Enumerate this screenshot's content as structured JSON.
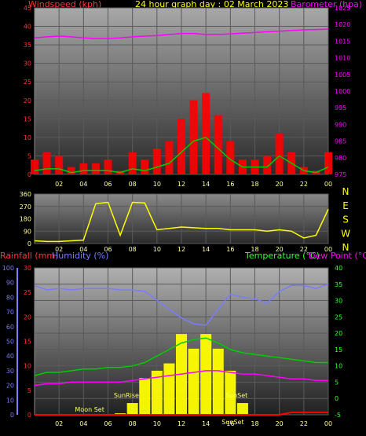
{
  "header": {
    "title": "24 hour graph day : 02 March 2023",
    "left_label": "Windspeed (kph)",
    "right_label": "Barometer (hpa)"
  },
  "colors": {
    "wind": "#ff0000",
    "gust": "#ff0000",
    "wind_avg": "#00cc00",
    "barometer": "#ff00ff",
    "direction": "#ffff00",
    "temperature": "#00cc00",
    "dew_point": "#ff00ff",
    "humidity": "#7b7bff",
    "solar": "#ffff00",
    "rain": "#ff0000",
    "title": "#ffff00",
    "axis_left": "#ff3333",
    "axis_right": "#ff00ff",
    "grid_line": "#666666"
  },
  "x_ticks": [
    "02",
    "04",
    "06",
    "08",
    "10",
    "12",
    "14",
    "16",
    "18",
    "20",
    "22",
    "00"
  ],
  "chart_data": [
    {
      "type": "line",
      "title": "24 hour graph day : 02 March 2023",
      "y_left_label": "Windspeed (kph)",
      "y_right_label": "Barometer (hpa)",
      "y_left_ticks": [
        0,
        5,
        10,
        15,
        20,
        25,
        30,
        35,
        40,
        45
      ],
      "y_right_ticks": [
        975,
        980,
        985,
        990,
        995,
        1000,
        1005,
        1010,
        1015,
        1020,
        1025
      ],
      "ylim_left": [
        0,
        45
      ],
      "ylim_right": [
        975,
        1025
      ],
      "x": [
        0,
        1,
        2,
        3,
        4,
        5,
        6,
        7,
        8,
        9,
        10,
        11,
        12,
        13,
        14,
        15,
        16,
        17,
        18,
        19,
        20,
        21,
        22,
        23,
        24
      ],
      "series": [
        {
          "name": "Barometer (hpa)",
          "axis": "right",
          "values": [
            1016,
            1016.3,
            1016.5,
            1016.3,
            1016,
            1015.8,
            1015.8,
            1016,
            1016.3,
            1016.5,
            1016.7,
            1017,
            1017.3,
            1017.3,
            1017,
            1017,
            1017.2,
            1017.4,
            1017.6,
            1017.8,
            1018,
            1018.2,
            1018.4,
            1018.5,
            1018.6
          ]
        },
        {
          "name": "Gust",
          "axis": "left",
          "values": [
            4,
            6,
            5,
            2,
            3,
            3,
            4,
            1,
            6,
            4,
            7,
            9,
            15,
            20,
            22,
            16,
            9,
            4,
            4,
            5,
            11,
            6,
            2,
            1,
            6
          ]
        },
        {
          "name": "Wind average",
          "axis": "left",
          "values": [
            1,
            1.5,
            1.5,
            0.5,
            1,
            1,
            1,
            0.5,
            1.5,
            1,
            2,
            3,
            6,
            9,
            10,
            7,
            4,
            2,
            2,
            2,
            5,
            3,
            1,
            0.5,
            2
          ]
        }
      ]
    },
    {
      "type": "line",
      "title": "",
      "y_left_ticks": [
        0,
        90,
        180,
        270,
        360
      ],
      "y_right_labels": [
        "N",
        "W",
        "S",
        "E",
        "N"
      ],
      "ylim": [
        0,
        360
      ],
      "x": [
        0,
        1,
        2,
        3,
        4,
        5,
        6,
        7,
        8,
        9,
        10,
        11,
        12,
        13,
        14,
        15,
        16,
        17,
        18,
        19,
        20,
        21,
        22,
        23,
        24
      ],
      "series": [
        {
          "name": "Wind direction",
          "values": [
            20,
            15,
            15,
            20,
            25,
            290,
            300,
            60,
            300,
            295,
            100,
            110,
            120,
            115,
            110,
            110,
            100,
            100,
            100,
            90,
            100,
            90,
            40,
            60,
            250
          ]
        }
      ]
    },
    {
      "type": "line",
      "left_label": "Rainfall (mm)",
      "left_label2": "Humidity (%)",
      "right_label": "Temperature (°C)",
      "right_label2": "Dew Point (°C)",
      "y_left_ticks": [
        0,
        10,
        20,
        30,
        40,
        50,
        60,
        70,
        80,
        90,
        100
      ],
      "y_left_ticks2": [
        0,
        5,
        10,
        15,
        20,
        25,
        30
      ],
      "y_right_ticks": [
        -5,
        0,
        5,
        10,
        15,
        20,
        25,
        30,
        35,
        40
      ],
      "ylim_humidity": [
        0,
        100
      ],
      "ylim_rain": [
        0,
        30
      ],
      "ylim_temp": [
        -5,
        40
      ],
      "x": [
        0,
        1,
        2,
        3,
        4,
        5,
        6,
        7,
        8,
        9,
        10,
        11,
        12,
        13,
        14,
        15,
        16,
        17,
        18,
        19,
        20,
        21,
        22,
        23,
        24
      ],
      "series": [
        {
          "name": "Humidity (%)",
          "axis": "humidity",
          "values": [
            88,
            85,
            86,
            85,
            86,
            86,
            86,
            85,
            85,
            84,
            78,
            72,
            66,
            62,
            61,
            72,
            82,
            80,
            79,
            76,
            84,
            88,
            88,
            86,
            89
          ]
        },
        {
          "name": "Temperature (°C)",
          "axis": "temp",
          "values": [
            7,
            8,
            8,
            8.5,
            9,
            9,
            9.5,
            9.5,
            10,
            11,
            13,
            15,
            17,
            18,
            18.5,
            17,
            15,
            14,
            13.5,
            13,
            12.5,
            12,
            11.5,
            11,
            11
          ]
        },
        {
          "name": "Dew Point (°C)",
          "axis": "temp",
          "values": [
            4,
            4.5,
            4.5,
            5,
            5,
            5,
            5,
            5,
            5.5,
            6,
            6.5,
            7,
            7.5,
            8,
            8.5,
            8.5,
            8,
            7.5,
            7.5,
            7,
            6.5,
            6,
            6,
            5.5,
            5.5
          ]
        },
        {
          "name": "Rainfall (mm)",
          "axis": "rain",
          "values": [
            0,
            0,
            0,
            0,
            0,
            0,
            0,
            0,
            0,
            0,
            0,
            0,
            0,
            0,
            0,
            0,
            0,
            0,
            0,
            0,
            0,
            0.5,
            0.5,
            0.5,
            0.5
          ]
        },
        {
          "name": "Solar",
          "axis": "humidity",
          "values": [
            0,
            0,
            0,
            0,
            0,
            0,
            0,
            1,
            8,
            25,
            30,
            35,
            55,
            45,
            55,
            45,
            30,
            8,
            0,
            0,
            0,
            0,
            0,
            0,
            0
          ]
        }
      ],
      "annotations": [
        "SunRise",
        "SunSet",
        "Moon Set",
        "SunSet"
      ]
    }
  ]
}
